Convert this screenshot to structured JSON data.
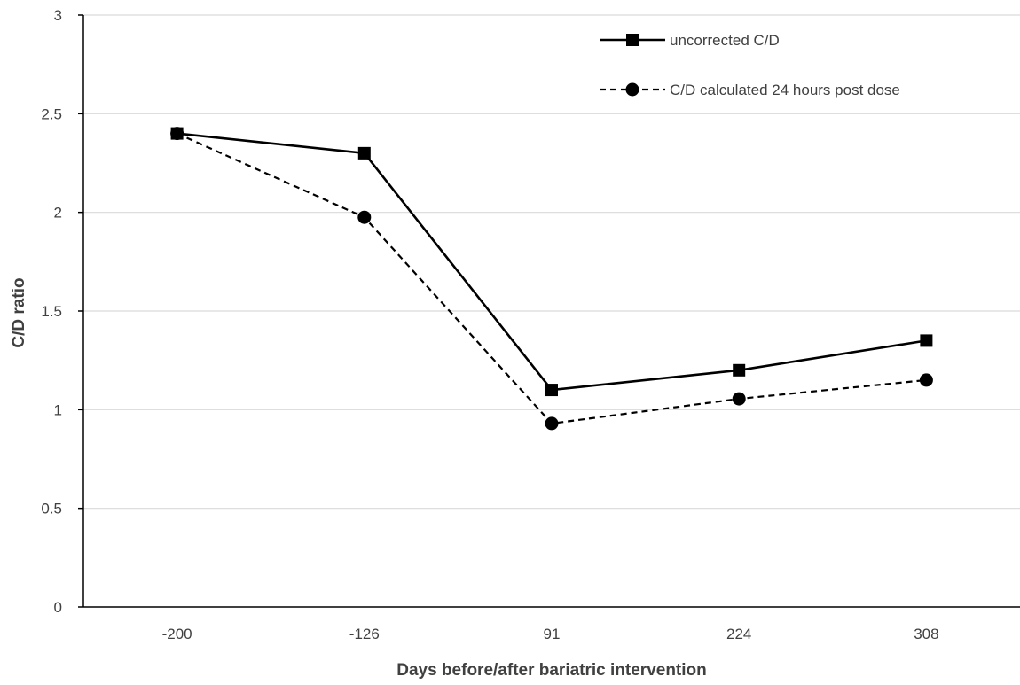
{
  "chart_data": {
    "type": "line",
    "categories": [
      "-200",
      "-126",
      "91",
      "224",
      "308"
    ],
    "series": [
      {
        "name": "uncorrected C/D",
        "values": [
          2.4,
          2.3,
          1.1,
          1.2,
          1.35
        ],
        "marker": "square",
        "line_style": "solid",
        "color": "#000000"
      },
      {
        "name": "C/D calculated 24 hours post dose",
        "values": [
          2.4,
          1.975,
          0.93,
          1.055,
          1.15
        ],
        "marker": "circle",
        "line_style": "dashed",
        "color": "#000000"
      }
    ],
    "xlabel": "Days before/after bariatric intervention",
    "ylabel": "C/D ratio",
    "ylim": [
      0,
      3
    ],
    "yticks": [
      "0",
      "0.5",
      "1",
      "1.5",
      "2",
      "2.5",
      "3"
    ],
    "grid": true,
    "legend": "top-right",
    "gridline_color": "#d9d9d9",
    "axis_color": "#000000"
  }
}
